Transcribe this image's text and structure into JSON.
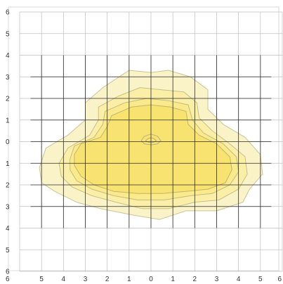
{
  "chart_data": {
    "type": "contour",
    "xlim": [
      -6,
      6
    ],
    "ylim": [
      -6,
      6
    ],
    "x_tick_labels": [
      "6",
      "5",
      "4",
      "3",
      "2",
      "1",
      "0",
      "1",
      "2",
      "3",
      "4",
      "5",
      "6"
    ],
    "y_tick_labels": [
      "6",
      "5",
      "4",
      "3",
      "2",
      "1",
      "0",
      "1",
      "2",
      "3",
      "4",
      "5",
      "6"
    ],
    "grid": true,
    "contour_levels": [
      {
        "fill": "#fbf3c8",
        "stroke": "#c9c49a",
        "points": [
          [
            -5.1,
            -1.2
          ],
          [
            -4.8,
            -0.3
          ],
          [
            -3.8,
            0.3
          ],
          [
            -3.0,
            1.0
          ],
          [
            -3.0,
            1.8
          ],
          [
            -2.2,
            2.5
          ],
          [
            -1.0,
            3.3
          ],
          [
            0.0,
            3.2
          ],
          [
            0.8,
            3.3
          ],
          [
            1.8,
            3.0
          ],
          [
            2.6,
            2.4
          ],
          [
            2.6,
            1.5
          ],
          [
            3.3,
            0.8
          ],
          [
            4.3,
            0.2
          ],
          [
            5.0,
            -0.6
          ],
          [
            5.1,
            -1.5
          ],
          [
            4.5,
            -2.2
          ],
          [
            4.2,
            -2.8
          ],
          [
            3.0,
            -3.2
          ],
          [
            1.6,
            -3.2
          ],
          [
            0.4,
            -3.6
          ],
          [
            -0.8,
            -3.4
          ],
          [
            -2.3,
            -3.1
          ],
          [
            -3.4,
            -2.8
          ],
          [
            -4.4,
            -2.3
          ],
          [
            -5.0,
            -1.9
          ]
        ]
      },
      {
        "fill": "#fbefa8",
        "stroke": "#c6bf89",
        "points": [
          [
            -4.2,
            -1.0
          ],
          [
            -3.8,
            -0.3
          ],
          [
            -2.8,
            0.3
          ],
          [
            -2.4,
            1.0
          ],
          [
            -2.4,
            1.6
          ],
          [
            -1.5,
            2.1
          ],
          [
            -0.5,
            2.5
          ],
          [
            0.5,
            2.4
          ],
          [
            1.5,
            2.3
          ],
          [
            2.1,
            1.8
          ],
          [
            2.2,
            1.1
          ],
          [
            2.8,
            0.5
          ],
          [
            3.6,
            -0.1
          ],
          [
            4.3,
            -0.7
          ],
          [
            4.4,
            -1.5
          ],
          [
            4.0,
            -2.2
          ],
          [
            3.1,
            -2.7
          ],
          [
            2.0,
            -2.8
          ],
          [
            0.8,
            -3.1
          ],
          [
            -0.4,
            -3.1
          ],
          [
            -1.6,
            -2.8
          ],
          [
            -2.7,
            -2.5
          ],
          [
            -3.6,
            -2.1
          ],
          [
            -4.1,
            -1.6
          ]
        ]
      },
      {
        "fill": "#faea8c",
        "stroke": "#c3bc7a",
        "points": [
          [
            -3.7,
            -0.8
          ],
          [
            -3.5,
            -0.2
          ],
          [
            -2.6,
            0.2
          ],
          [
            -2.2,
            0.8
          ],
          [
            -2.1,
            1.4
          ],
          [
            -1.2,
            1.8
          ],
          [
            -0.2,
            2.0
          ],
          [
            0.8,
            1.9
          ],
          [
            1.7,
            1.7
          ],
          [
            1.9,
            1.0
          ],
          [
            2.4,
            0.4
          ],
          [
            3.3,
            -0.1
          ],
          [
            3.9,
            -0.7
          ],
          [
            4.0,
            -1.4
          ],
          [
            3.6,
            -2.0
          ],
          [
            2.8,
            -2.4
          ],
          [
            1.8,
            -2.5
          ],
          [
            0.6,
            -2.7
          ],
          [
            -0.6,
            -2.7
          ],
          [
            -1.7,
            -2.5
          ],
          [
            -2.7,
            -2.2
          ],
          [
            -3.4,
            -1.8
          ],
          [
            -3.7,
            -1.3
          ]
        ]
      },
      {
        "fill": "#f9e370",
        "stroke": "#bfb66a",
        "points": [
          [
            -3.5,
            -0.6
          ],
          [
            -3.2,
            -0.1
          ],
          [
            -2.3,
            0.2
          ],
          [
            -2.0,
            0.7
          ],
          [
            -1.8,
            1.2
          ],
          [
            -0.9,
            1.6
          ],
          [
            0.0,
            1.7
          ],
          [
            0.9,
            1.6
          ],
          [
            1.6,
            1.4
          ],
          [
            1.7,
            0.8
          ],
          [
            2.2,
            0.3
          ],
          [
            3.0,
            -0.1
          ],
          [
            3.6,
            -0.7
          ],
          [
            3.7,
            -1.3
          ],
          [
            3.4,
            -1.9
          ],
          [
            2.6,
            -2.2
          ],
          [
            1.6,
            -2.3
          ],
          [
            0.5,
            -2.4
          ],
          [
            -0.6,
            -2.4
          ],
          [
            -1.7,
            -2.3
          ],
          [
            -2.6,
            -2.0
          ],
          [
            -3.2,
            -1.6
          ],
          [
            -3.5,
            -1.1
          ]
        ]
      },
      {
        "fill": "#f9e370",
        "stroke": "#b5ae82",
        "points": [
          [
            -0.45,
            0.05
          ],
          [
            -0.3,
            0.25
          ],
          [
            0.0,
            0.35
          ],
          [
            0.3,
            0.25
          ],
          [
            0.45,
            0.05
          ],
          [
            0.3,
            -0.1
          ],
          [
            0.0,
            -0.15
          ],
          [
            -0.3,
            -0.1
          ]
        ]
      },
      {
        "fill": "#f9e370",
        "stroke": "#b5ae82",
        "points": [
          [
            -0.25,
            0.05
          ],
          [
            -0.12,
            0.15
          ],
          [
            0.0,
            0.18
          ],
          [
            0.12,
            0.15
          ],
          [
            0.25,
            0.05
          ],
          [
            0.12,
            -0.03
          ],
          [
            0.0,
            -0.05
          ],
          [
            -0.12,
            -0.03
          ]
        ]
      }
    ]
  }
}
